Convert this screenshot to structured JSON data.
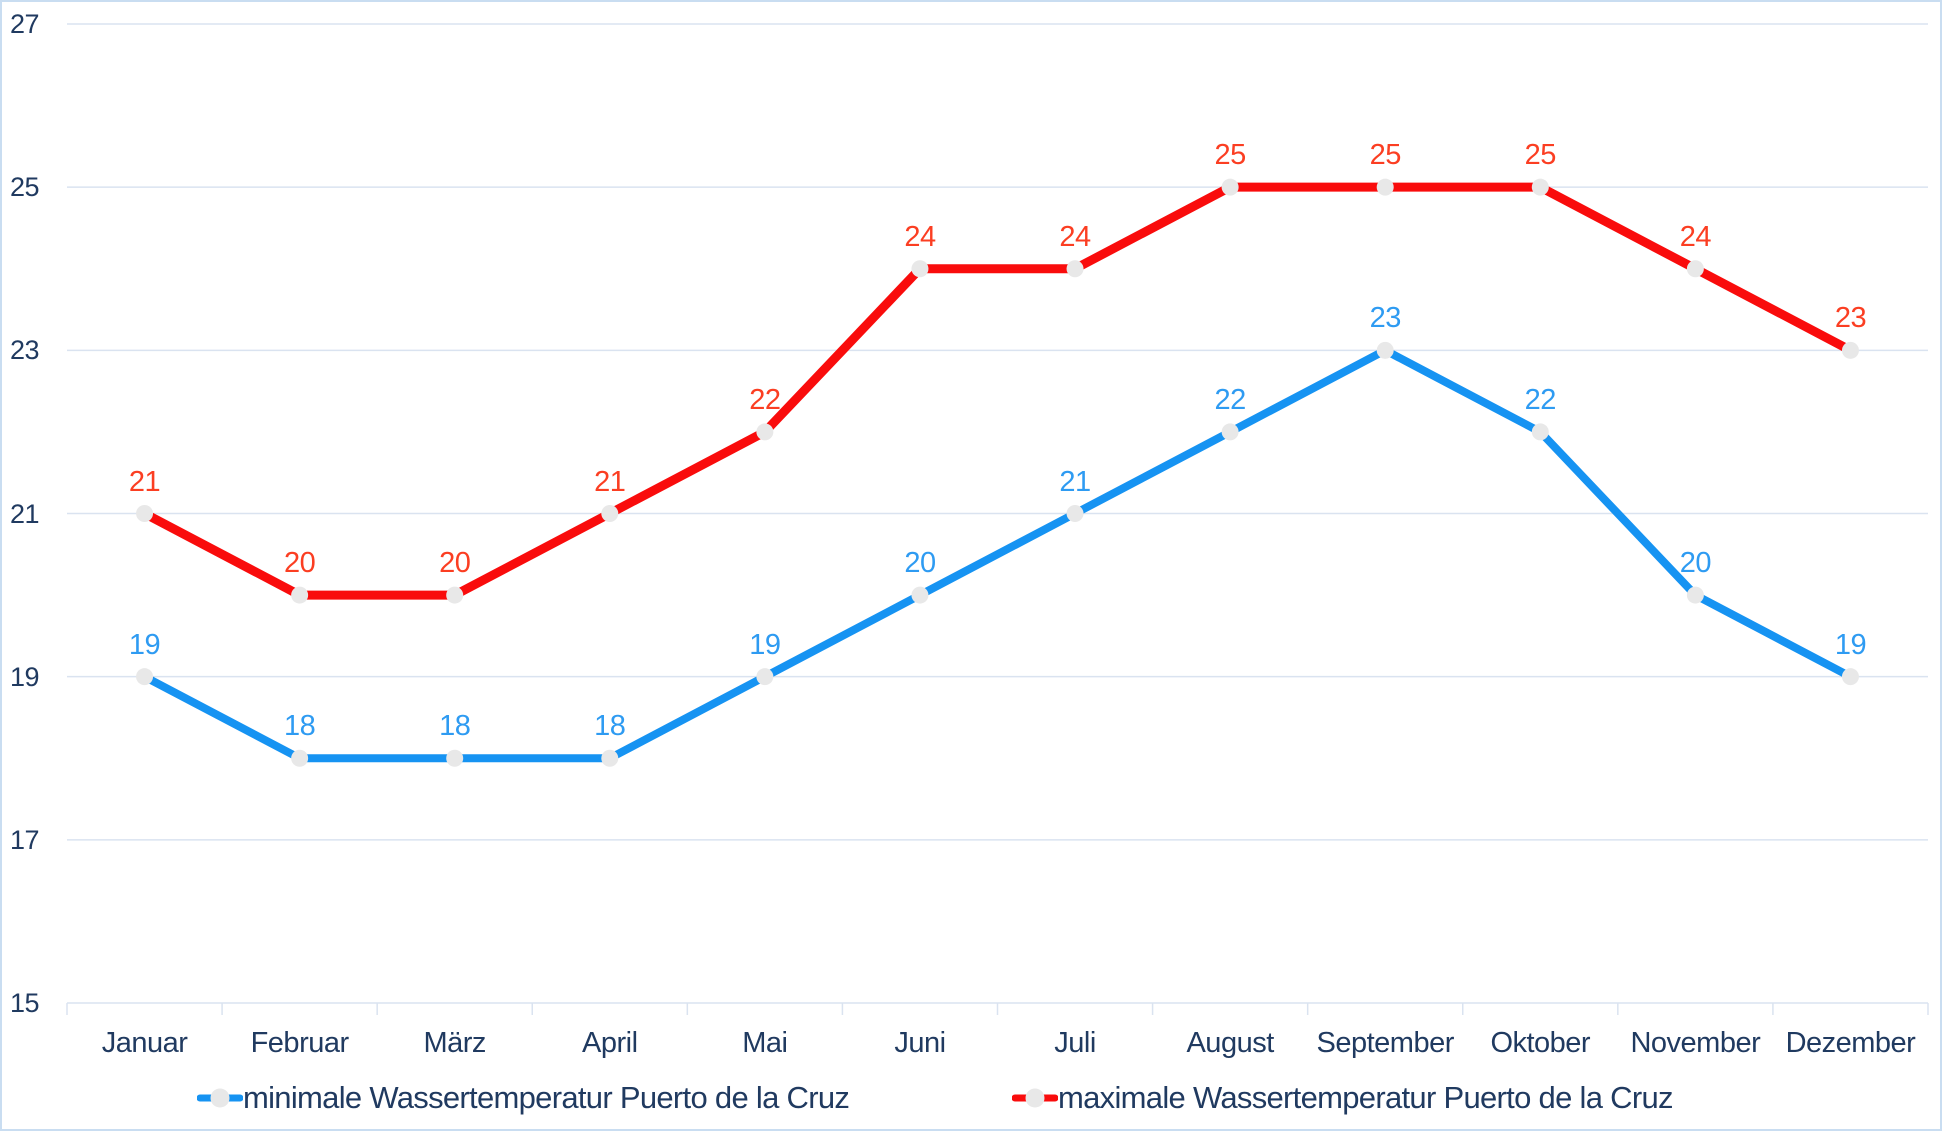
{
  "chart_data": {
    "type": "line",
    "categories": [
      "Januar",
      "Februar",
      "März",
      "April",
      "Mai",
      "Juni",
      "Juli",
      "August",
      "September",
      "Oktober",
      "November",
      "Dezember"
    ],
    "series": [
      {
        "name": "minimale Wassertemperatur Puerto de la Cruz",
        "values": [
          19,
          18,
          18,
          18,
          19,
          20,
          21,
          22,
          23,
          22,
          20,
          19
        ],
        "line_color": "#1693F2",
        "label_color": "#2E9BF2"
      },
      {
        "name": "maximale Wassertemperatur Puerto de la Cruz",
        "values": [
          21,
          20,
          20,
          21,
          22,
          24,
          24,
          25,
          25,
          25,
          24,
          23
        ],
        "line_color": "#F90C0C",
        "label_color": "#FB3E22"
      }
    ],
    "ylim": [
      15,
      27
    ],
    "yticks": [
      15,
      17,
      19,
      21,
      23,
      25,
      27
    ],
    "ytick_labels": [
      "15",
      "17",
      "19",
      "21",
      "23",
      "25",
      "27"
    ],
    "xlabel": "",
    "ylabel": "",
    "grid": "horizontal",
    "legend_position": "bottom",
    "marker_color": "#E8E8E8",
    "gridline_color": "#DAE3F0",
    "axis_text_color": "#203A60",
    "frame_color": "#C9DDF1"
  }
}
